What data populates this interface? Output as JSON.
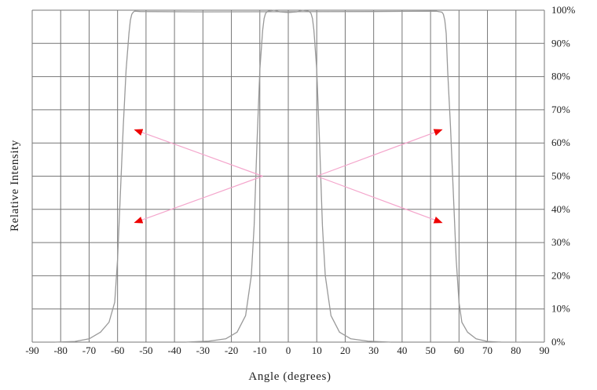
{
  "chart_data": {
    "type": "line",
    "xlabel": "Angle (degrees)",
    "ylabel": "Relative Intensity",
    "xlim": [
      -90,
      90
    ],
    "ylim": [
      0,
      100
    ],
    "x_ticks": [
      -90,
      -80,
      -70,
      -60,
      -50,
      -40,
      -30,
      -20,
      -10,
      0,
      10,
      20,
      30,
      40,
      50,
      60,
      70,
      80,
      90
    ],
    "x_tick_labels": [
      "-90",
      "-80",
      "-70",
      "-60",
      "-50",
      "-40",
      "-30",
      "-20",
      "-10",
      "0",
      "10",
      "20",
      "30",
      "40",
      "50",
      "60",
      "70",
      "80",
      "90"
    ],
    "y_ticks": [
      0,
      10,
      20,
      30,
      40,
      50,
      60,
      70,
      80,
      90,
      100
    ],
    "y_tick_labels": [
      "0%",
      "10%",
      "20%",
      "30%",
      "40%",
      "50%",
      "60%",
      "70%",
      "80%",
      "90%",
      "100%"
    ],
    "y_axis_side": "right",
    "grid": true,
    "colors": {
      "curve": "#999999",
      "grid": "#777777",
      "arrow_line": "#f4a6cc",
      "arrow_head": "#ee0000"
    },
    "series": [
      {
        "x": [
          -82,
          -75,
          -70,
          -66,
          -63,
          -61,
          -60,
          -59,
          -58,
          -57,
          -56,
          -55.5,
          -55,
          -54.5,
          -54,
          -52,
          -30,
          30,
          52,
          54,
          54.5,
          55,
          55.5,
          56,
          57,
          58,
          59,
          60,
          61,
          63,
          66,
          70,
          75,
          82
        ],
        "y": [
          0,
          0.2,
          1,
          3,
          6,
          12,
          25,
          45,
          65,
          82,
          93,
          97,
          98.8,
          99.4,
          99.7,
          99.6,
          99.5,
          99.6,
          99.7,
          99.4,
          98.8,
          97,
          93,
          82,
          65,
          45,
          25,
          12,
          6,
          3,
          1,
          0.2,
          0,
          0
        ]
      },
      {
        "x": [
          -36,
          -28,
          -22,
          -18,
          -15,
          -13,
          -12,
          -11,
          -10,
          -9,
          -8.5,
          -8,
          -7.5,
          -7,
          -5,
          -3,
          0,
          3,
          5,
          7,
          7.5,
          8,
          8.5,
          9,
          10,
          11,
          12,
          13,
          15,
          18,
          22,
          28,
          36
        ],
        "y": [
          0,
          0.3,
          1,
          3,
          8,
          20,
          35,
          60,
          82,
          94,
          97.5,
          99,
          99.5,
          99.7,
          100,
          99.5,
          99.3,
          99.5,
          100,
          99.7,
          99.5,
          99,
          97.5,
          94,
          82,
          60,
          35,
          20,
          8,
          3,
          1,
          0.3,
          0
        ]
      }
    ],
    "annotations": [
      {
        "type": "arrow",
        "from": [
          -9,
          50
        ],
        "to": [
          -54,
          64
        ]
      },
      {
        "type": "arrow",
        "from": [
          -9,
          50
        ],
        "to": [
          -54,
          36
        ]
      },
      {
        "type": "arrow",
        "from": [
          10,
          50
        ],
        "to": [
          54,
          64
        ]
      },
      {
        "type": "arrow",
        "from": [
          10,
          50
        ],
        "to": [
          54,
          36
        ]
      }
    ]
  }
}
